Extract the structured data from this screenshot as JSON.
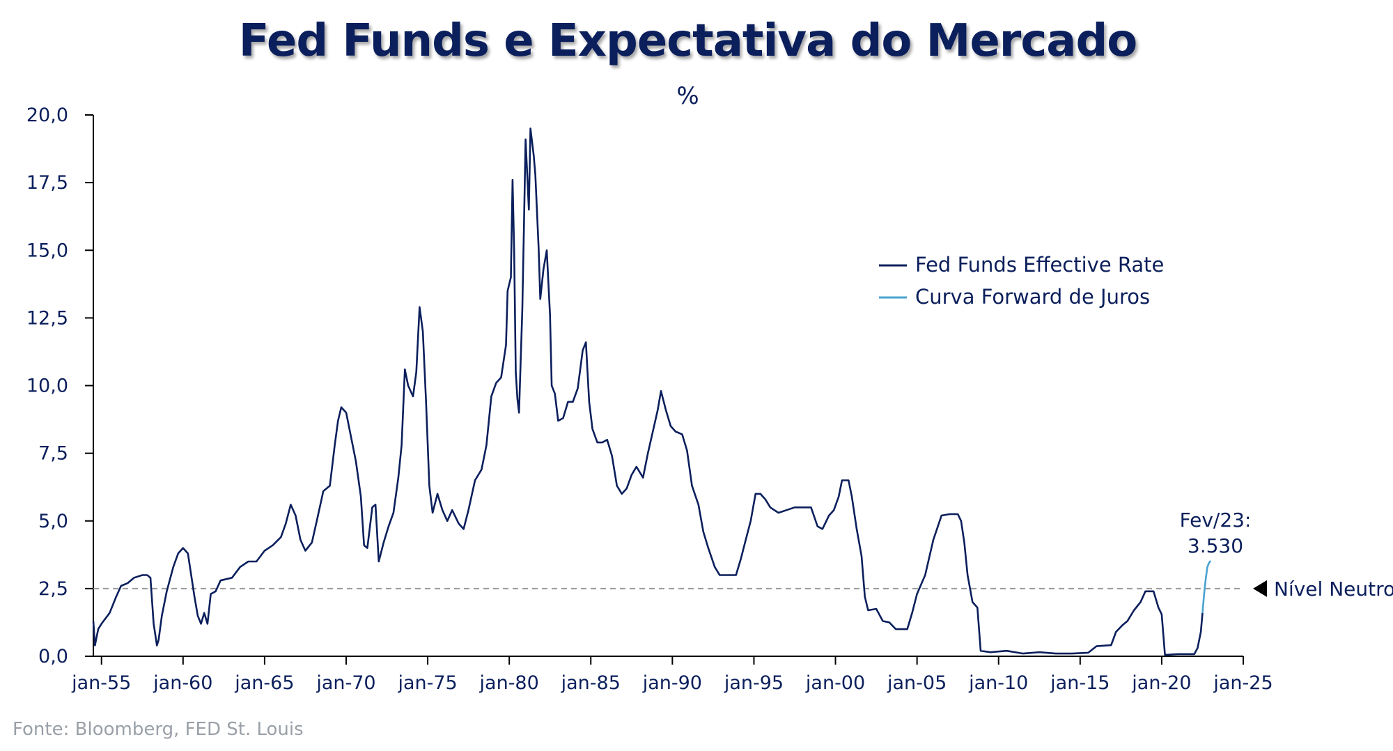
{
  "title": "Fed Funds e Expectativa do Mercado",
  "subtitle": "%",
  "source": "Fonte:  Bloomberg, FED St. Louis",
  "chart_data": {
    "type": "line",
    "title": "Fed Funds e Expectativa do Mercado",
    "subtitle": "%",
    "xlabel": "",
    "ylabel": "",
    "ylim": [
      0,
      20
    ],
    "xlim": [
      1954.5,
      2025.0
    ],
    "yticks": [
      "0,0",
      "2,5",
      "5,0",
      "7,5",
      "10,0",
      "12,5",
      "15,0",
      "17,5",
      "20,0"
    ],
    "xticks": [
      "jan-55",
      "jan-60",
      "jan-65",
      "jan-70",
      "jan-75",
      "jan-80",
      "jan-85",
      "jan-90",
      "jan-95",
      "jan-00",
      "jan-05",
      "jan-10",
      "jan-15",
      "jan-20",
      "jan-25"
    ],
    "grid": false,
    "legend_position": "top-right",
    "colors": {
      "effective": "#0b1f5c",
      "forward": "#4aa3d1",
      "neutral": "#9a9a9a",
      "text": "#0b1f5c"
    },
    "reference_line": {
      "y": 2.5,
      "label": "Nível Neutro"
    },
    "annotation": {
      "line1": "Fev/23:",
      "line2": "3.530"
    },
    "series": [
      {
        "name": "Fed Funds Effective Rate",
        "points": [
          [
            1954.5,
            1.3
          ],
          [
            1954.6,
            0.4
          ],
          [
            1954.8,
            1.0
          ],
          [
            1955.0,
            1.2
          ],
          [
            1955.5,
            1.6
          ],
          [
            1955.9,
            2.2
          ],
          [
            1956.2,
            2.6
          ],
          [
            1956.6,
            2.7
          ],
          [
            1957.0,
            2.9
          ],
          [
            1957.5,
            3.0
          ],
          [
            1957.8,
            3.0
          ],
          [
            1958.0,
            2.9
          ],
          [
            1958.2,
            1.2
          ],
          [
            1958.4,
            0.4
          ],
          [
            1958.5,
            0.6
          ],
          [
            1958.7,
            1.5
          ],
          [
            1959.0,
            2.4
          ],
          [
            1959.4,
            3.3
          ],
          [
            1959.7,
            3.8
          ],
          [
            1960.0,
            4.0
          ],
          [
            1960.3,
            3.8
          ],
          [
            1960.5,
            3.0
          ],
          [
            1960.7,
            2.2
          ],
          [
            1960.9,
            1.5
          ],
          [
            1961.1,
            1.2
          ],
          [
            1961.3,
            1.6
          ],
          [
            1961.5,
            1.2
          ],
          [
            1961.7,
            2.3
          ],
          [
            1962.0,
            2.4
          ],
          [
            1962.3,
            2.8
          ],
          [
            1963.0,
            2.9
          ],
          [
            1963.5,
            3.3
          ],
          [
            1964.0,
            3.5
          ],
          [
            1964.5,
            3.5
          ],
          [
            1965.0,
            3.9
          ],
          [
            1965.5,
            4.1
          ],
          [
            1966.0,
            4.4
          ],
          [
            1966.3,
            4.9
          ],
          [
            1966.6,
            5.6
          ],
          [
            1966.9,
            5.2
          ],
          [
            1967.2,
            4.3
          ],
          [
            1967.5,
            3.9
          ],
          [
            1967.9,
            4.2
          ],
          [
            1968.2,
            5.0
          ],
          [
            1968.6,
            6.1
          ],
          [
            1969.0,
            6.3
          ],
          [
            1969.3,
            7.8
          ],
          [
            1969.5,
            8.7
          ],
          [
            1969.7,
            9.2
          ],
          [
            1970.0,
            9.0
          ],
          [
            1970.3,
            8.1
          ],
          [
            1970.6,
            7.2
          ],
          [
            1970.9,
            5.9
          ],
          [
            1971.1,
            4.1
          ],
          [
            1971.3,
            4.0
          ],
          [
            1971.6,
            5.5
          ],
          [
            1971.8,
            5.6
          ],
          [
            1972.0,
            3.5
          ],
          [
            1972.3,
            4.2
          ],
          [
            1972.6,
            4.8
          ],
          [
            1972.9,
            5.3
          ],
          [
            1973.2,
            6.6
          ],
          [
            1973.4,
            7.8
          ],
          [
            1973.6,
            10.6
          ],
          [
            1973.8,
            10.0
          ],
          [
            1974.1,
            9.6
          ],
          [
            1974.3,
            10.5
          ],
          [
            1974.5,
            12.9
          ],
          [
            1974.7,
            12.0
          ],
          [
            1974.9,
            9.4
          ],
          [
            1975.1,
            6.3
          ],
          [
            1975.3,
            5.3
          ],
          [
            1975.6,
            6.0
          ],
          [
            1975.9,
            5.4
          ],
          [
            1976.2,
            5.0
          ],
          [
            1976.5,
            5.4
          ],
          [
            1976.9,
            4.9
          ],
          [
            1977.2,
            4.7
          ],
          [
            1977.5,
            5.4
          ],
          [
            1977.9,
            6.5
          ],
          [
            1978.3,
            6.9
          ],
          [
            1978.6,
            7.8
          ],
          [
            1978.9,
            9.6
          ],
          [
            1979.2,
            10.1
          ],
          [
            1979.5,
            10.3
          ],
          [
            1979.8,
            11.5
          ],
          [
            1979.9,
            13.5
          ],
          [
            1980.1,
            14.0
          ],
          [
            1980.2,
            17.6
          ],
          [
            1980.3,
            15.0
          ],
          [
            1980.4,
            10.5
          ],
          [
            1980.5,
            9.5
          ],
          [
            1980.6,
            9.0
          ],
          [
            1980.8,
            12.8
          ],
          [
            1980.9,
            15.8
          ],
          [
            1981.0,
            19.1
          ],
          [
            1981.2,
            16.5
          ],
          [
            1981.3,
            19.5
          ],
          [
            1981.5,
            18.5
          ],
          [
            1981.6,
            17.8
          ],
          [
            1981.8,
            15.1
          ],
          [
            1981.9,
            13.2
          ],
          [
            1982.1,
            14.3
          ],
          [
            1982.3,
            15.0
          ],
          [
            1982.5,
            12.6
          ],
          [
            1982.6,
            10.0
          ],
          [
            1982.8,
            9.7
          ],
          [
            1983.0,
            8.7
          ],
          [
            1983.3,
            8.8
          ],
          [
            1983.6,
            9.4
          ],
          [
            1983.9,
            9.4
          ],
          [
            1984.2,
            9.9
          ],
          [
            1984.5,
            11.3
          ],
          [
            1984.7,
            11.6
          ],
          [
            1984.9,
            9.4
          ],
          [
            1985.1,
            8.4
          ],
          [
            1985.4,
            7.9
          ],
          [
            1985.7,
            7.9
          ],
          [
            1986.0,
            8.0
          ],
          [
            1986.3,
            7.4
          ],
          [
            1986.6,
            6.3
          ],
          [
            1986.9,
            6.0
          ],
          [
            1987.2,
            6.2
          ],
          [
            1987.5,
            6.7
          ],
          [
            1987.8,
            7.0
          ],
          [
            1988.2,
            6.6
          ],
          [
            1988.5,
            7.5
          ],
          [
            1988.8,
            8.3
          ],
          [
            1989.1,
            9.1
          ],
          [
            1989.3,
            9.8
          ],
          [
            1989.6,
            9.1
          ],
          [
            1989.9,
            8.5
          ],
          [
            1990.2,
            8.3
          ],
          [
            1990.6,
            8.2
          ],
          [
            1990.9,
            7.6
          ],
          [
            1991.2,
            6.3
          ],
          [
            1991.6,
            5.6
          ],
          [
            1991.9,
            4.6
          ],
          [
            1992.2,
            4.0
          ],
          [
            1992.6,
            3.3
          ],
          [
            1992.9,
            3.0
          ],
          [
            1993.5,
            3.0
          ],
          [
            1993.9,
            3.0
          ],
          [
            1994.2,
            3.6
          ],
          [
            1994.5,
            4.3
          ],
          [
            1994.8,
            5.0
          ],
          [
            1995.1,
            6.0
          ],
          [
            1995.4,
            6.0
          ],
          [
            1995.7,
            5.8
          ],
          [
            1996.0,
            5.5
          ],
          [
            1996.5,
            5.3
          ],
          [
            1997.0,
            5.4
          ],
          [
            1997.5,
            5.5
          ],
          [
            1998.0,
            5.5
          ],
          [
            1998.5,
            5.5
          ],
          [
            1998.9,
            4.8
          ],
          [
            1999.2,
            4.7
          ],
          [
            1999.6,
            5.2
          ],
          [
            1999.9,
            5.4
          ],
          [
            2000.2,
            5.9
          ],
          [
            2000.4,
            6.5
          ],
          [
            2000.8,
            6.5
          ],
          [
            2001.0,
            5.9
          ],
          [
            2001.3,
            4.7
          ],
          [
            2001.6,
            3.7
          ],
          [
            2001.8,
            2.2
          ],
          [
            2002.0,
            1.7
          ],
          [
            2002.5,
            1.75
          ],
          [
            2002.9,
            1.3
          ],
          [
            2003.3,
            1.25
          ],
          [
            2003.7,
            1.0
          ],
          [
            2004.0,
            1.0
          ],
          [
            2004.4,
            1.0
          ],
          [
            2004.7,
            1.6
          ],
          [
            2005.0,
            2.3
          ],
          [
            2005.5,
            3.0
          ],
          [
            2006.0,
            4.3
          ],
          [
            2006.5,
            5.2
          ],
          [
            2007.0,
            5.25
          ],
          [
            2007.5,
            5.25
          ],
          [
            2007.7,
            5.0
          ],
          [
            2007.9,
            4.2
          ],
          [
            2008.1,
            3.0
          ],
          [
            2008.4,
            2.0
          ],
          [
            2008.7,
            1.8
          ],
          [
            2008.9,
            0.2
          ],
          [
            2009.5,
            0.15
          ],
          [
            2010.5,
            0.2
          ],
          [
            2011.5,
            0.1
          ],
          [
            2012.5,
            0.15
          ],
          [
            2013.5,
            0.1
          ],
          [
            2014.5,
            0.1
          ],
          [
            2015.5,
            0.13
          ],
          [
            2016.0,
            0.37
          ],
          [
            2016.9,
            0.41
          ],
          [
            2017.2,
            0.9
          ],
          [
            2017.6,
            1.15
          ],
          [
            2017.9,
            1.3
          ],
          [
            2018.3,
            1.7
          ],
          [
            2018.7,
            2.0
          ],
          [
            2019.0,
            2.4
          ],
          [
            2019.5,
            2.4
          ],
          [
            2019.8,
            1.8
          ],
          [
            2020.0,
            1.55
          ],
          [
            2020.2,
            0.05
          ],
          [
            2021.0,
            0.08
          ],
          [
            2021.5,
            0.08
          ],
          [
            2022.0,
            0.08
          ],
          [
            2022.2,
            0.3
          ],
          [
            2022.4,
            0.9
          ],
          [
            2022.5,
            1.6
          ]
        ]
      },
      {
        "name": "Curva Forward de Juros",
        "points": [
          [
            2022.5,
            1.6
          ],
          [
            2022.6,
            2.3
          ],
          [
            2022.7,
            2.85
          ],
          [
            2022.8,
            3.3
          ],
          [
            2022.9,
            3.45
          ],
          [
            2023.0,
            3.53
          ]
        ]
      }
    ]
  }
}
